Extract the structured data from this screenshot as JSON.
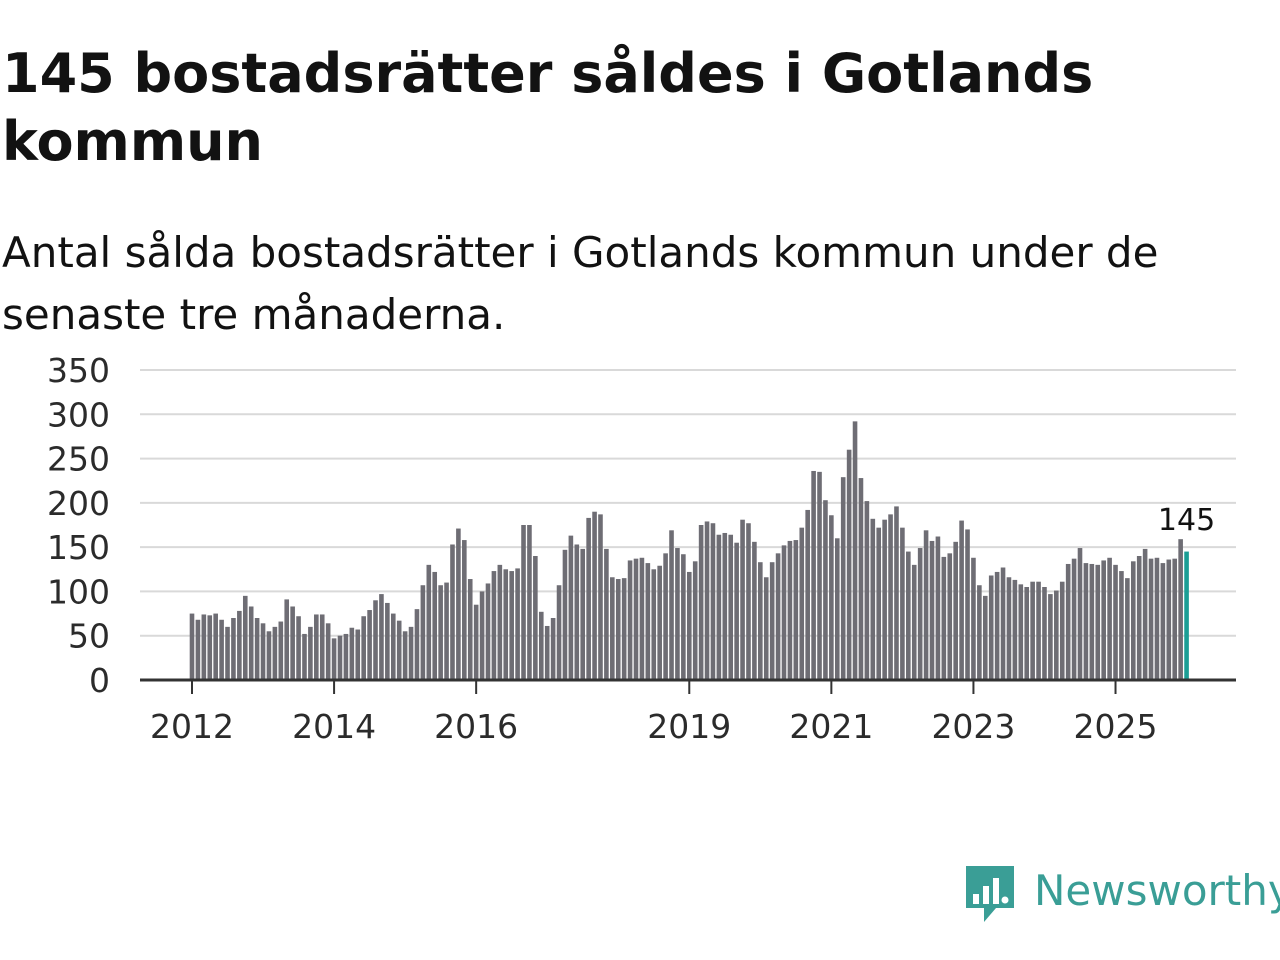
{
  "title": "145 bostadsrätter såldes i Gotlands kommun",
  "subtitle": "Antal sålda bostadsrätter i Gotlands kommun under de senaste tre månaderna.",
  "brand": {
    "name": "Newsworthy",
    "icon": "newsworthy-logo-icon",
    "color": "#3a9e96"
  },
  "colors": {
    "bar": "#6e6d74",
    "highlight": "#1b9e95",
    "grid": "#d9d9d9",
    "axis": "#333333"
  },
  "chart_data": {
    "type": "bar",
    "title": "145 bostadsrätter såldes i Gotlands kommun",
    "subtitle": "Antal sålda bostadsrätter i Gotlands kommun under de senaste tre månaderna.",
    "xlabel": "",
    "ylabel": "",
    "ylim": [
      0,
      350
    ],
    "yticks": [
      0,
      50,
      100,
      150,
      200,
      250,
      300,
      350
    ],
    "grid": true,
    "legend": "none",
    "start": "2012-01",
    "frequency": "monthly",
    "xtick_labels": [
      "2012",
      "2014",
      "2016",
      "2019",
      "2021",
      "2023",
      "2025"
    ],
    "highlight_label": "145",
    "values": [
      75,
      68,
      74,
      73,
      75,
      68,
      60,
      70,
      78,
      95,
      83,
      70,
      64,
      55,
      60,
      66,
      91,
      83,
      72,
      52,
      60,
      74,
      74,
      64,
      47,
      50,
      52,
      59,
      57,
      72,
      79,
      90,
      97,
      87,
      75,
      67,
      55,
      60,
      80,
      107,
      130,
      122,
      107,
      110,
      153,
      171,
      158,
      114,
      85,
      100,
      109,
      123,
      130,
      125,
      123,
      126,
      175,
      175,
      140,
      77,
      61,
      70,
      107,
      147,
      163,
      153,
      148,
      183,
      190,
      187,
      148,
      116,
      114,
      115,
      135,
      137,
      138,
      132,
      125,
      129,
      143,
      169,
      149,
      142,
      122,
      134,
      175,
      179,
      177,
      164,
      166,
      164,
      155,
      181,
      177,
      156,
      133,
      116,
      133,
      143,
      152,
      157,
      158,
      172,
      192,
      236,
      235,
      203,
      186,
      160,
      229,
      260,
      292,
      228,
      202,
      182,
      172,
      181,
      187,
      196,
      172,
      145,
      130,
      149,
      169,
      157,
      162,
      139,
      143,
      156,
      180,
      170,
      138,
      107,
      95,
      118,
      122,
      127,
      116,
      113,
      108,
      105,
      111,
      111,
      105,
      97,
      101,
      111,
      131,
      137,
      149,
      132,
      131,
      130,
      135,
      138,
      130,
      123,
      115,
      134,
      140,
      148,
      137,
      138,
      132,
      136,
      137,
      159,
      145
    ]
  }
}
